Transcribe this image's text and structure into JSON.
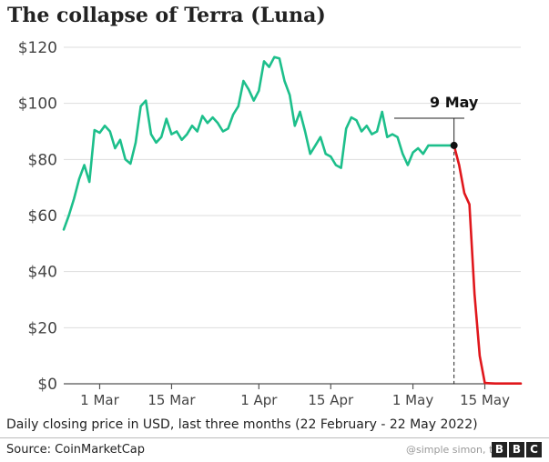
{
  "chart_data": {
    "type": "line",
    "title": "The collapse of Terra (Luna)",
    "subtitle": "Daily closing price in USD, last three months (22 February - 22 May 2022)",
    "source": "Source: CoinMarketCap",
    "watermark": "@simple simon, the pro",
    "logo": [
      "B",
      "B",
      "C"
    ],
    "x_start": "2022-02-22",
    "x_end": "2022-05-22",
    "x_ticks": [
      {
        "date": "2022-03-01",
        "label": "1 Mar"
      },
      {
        "date": "2022-03-15",
        "label": "15 Mar"
      },
      {
        "date": "2022-04-01",
        "label": "1 Apr"
      },
      {
        "date": "2022-04-15",
        "label": "15 Apr"
      },
      {
        "date": "2022-05-01",
        "label": "1 May"
      },
      {
        "date": "2022-05-15",
        "label": "15 May"
      }
    ],
    "ylim": [
      0,
      120
    ],
    "y_ticks": [
      {
        "value": 0,
        "label": "$0"
      },
      {
        "value": 20,
        "label": "$20"
      },
      {
        "value": 40,
        "label": "$40"
      },
      {
        "value": 60,
        "label": "$60"
      },
      {
        "value": 80,
        "label": "$80"
      },
      {
        "value": 100,
        "label": "$100"
      },
      {
        "value": 120,
        "label": "$120"
      }
    ],
    "grid": "horizontal",
    "annotation": {
      "date": "2022-05-09",
      "value": 85,
      "label": "9 May"
    },
    "colors": {
      "before": "#1dbf8b",
      "after": "#e0171c",
      "grid": "#dddddd",
      "axis": "#555555"
    },
    "series": [
      {
        "dates": [
          "2022-02-22",
          "2022-02-23",
          "2022-02-24",
          "2022-02-25",
          "2022-02-26",
          "2022-02-27",
          "2022-02-28",
          "2022-03-01",
          "2022-03-02",
          "2022-03-03",
          "2022-03-04",
          "2022-03-05",
          "2022-03-06",
          "2022-03-07",
          "2022-03-08",
          "2022-03-09",
          "2022-03-10",
          "2022-03-11",
          "2022-03-12",
          "2022-03-13",
          "2022-03-14",
          "2022-03-15",
          "2022-03-16",
          "2022-03-17",
          "2022-03-18",
          "2022-03-19",
          "2022-03-20",
          "2022-03-21",
          "2022-03-22",
          "2022-03-23",
          "2022-03-24",
          "2022-03-25",
          "2022-03-26",
          "2022-03-27",
          "2022-03-28",
          "2022-03-29",
          "2022-03-30",
          "2022-03-31",
          "2022-04-01",
          "2022-04-02",
          "2022-04-03",
          "2022-04-04",
          "2022-04-05",
          "2022-04-06",
          "2022-04-07",
          "2022-04-08",
          "2022-04-09",
          "2022-04-10",
          "2022-04-11",
          "2022-04-12",
          "2022-04-13",
          "2022-04-14",
          "2022-04-15",
          "2022-04-16",
          "2022-04-17",
          "2022-04-18",
          "2022-04-19",
          "2022-04-20",
          "2022-04-21",
          "2022-04-22",
          "2022-04-23",
          "2022-04-24",
          "2022-04-25",
          "2022-04-26",
          "2022-04-27",
          "2022-04-28",
          "2022-04-29",
          "2022-04-30",
          "2022-05-01",
          "2022-05-02",
          "2022-05-03",
          "2022-05-04",
          "2022-05-05",
          "2022-05-06",
          "2022-05-07",
          "2022-05-08",
          "2022-05-09"
        ],
        "values": [
          55,
          60,
          66,
          73,
          78,
          72,
          90.5,
          89.5,
          92,
          90,
          84,
          87,
          80,
          78.5,
          86,
          99,
          101,
          89,
          86,
          88,
          94.5,
          89,
          90,
          87,
          89,
          92,
          90,
          95.5,
          93,
          95,
          93,
          90,
          91,
          96,
          99,
          108,
          105,
          101,
          104.5,
          115,
          113,
          116.5,
          116,
          108,
          103,
          92,
          97,
          90,
          82,
          85,
          88,
          82,
          81,
          78,
          77,
          91,
          95,
          94,
          90,
          92,
          89,
          90,
          97,
          88,
          89,
          88,
          82,
          78,
          82.5,
          84,
          82,
          85,
          85,
          85,
          85,
          85,
          85
        ]
      },
      {
        "dates": [
          "2022-05-09",
          "2022-05-10",
          "2022-05-11",
          "2022-05-12",
          "2022-05-13",
          "2022-05-14",
          "2022-05-15",
          "2022-05-16",
          "2022-05-17",
          "2022-05-18",
          "2022-05-19",
          "2022-05-20",
          "2022-05-21",
          "2022-05-22"
        ],
        "values": [
          85,
          78,
          68,
          64,
          32,
          10,
          0.3,
          0.2,
          0.1,
          0.1,
          0.1,
          0.1,
          0.1,
          0.1
        ]
      }
    ]
  }
}
